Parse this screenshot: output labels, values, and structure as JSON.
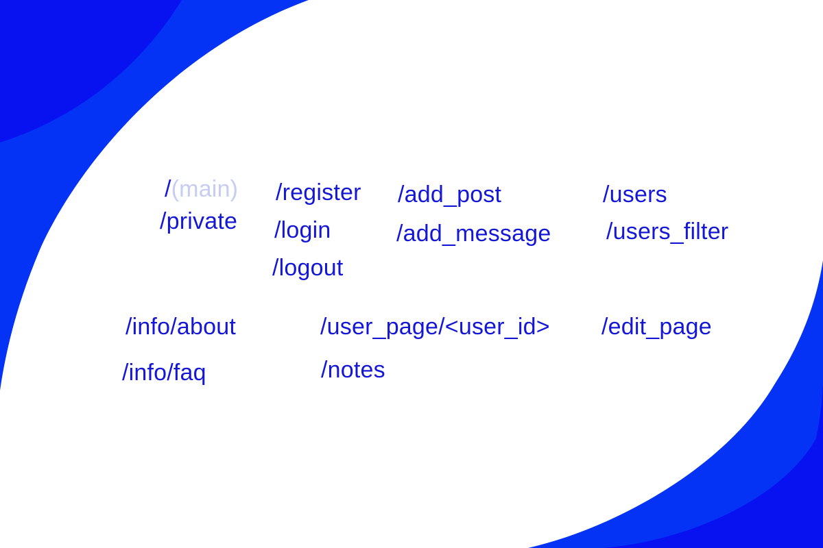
{
  "colors": {
    "route_text": "#1418d6",
    "muted_text": "#c6cdf3",
    "bg_blue_light": "#0433f5",
    "bg_blue_dark": "#0811f0",
    "background": "#ffffff"
  },
  "routes": {
    "main_slash": "/",
    "main_label": "(main)",
    "private": "/private",
    "register": "/register",
    "login": "/login",
    "logout": "/logout",
    "add_post": "/add_post",
    "add_message": "/add_message",
    "users": "/users",
    "users_filter": "/users_filter",
    "info_about": "/info/about",
    "info_faq": "/info/faq",
    "user_page": "/user_page/<user_id>",
    "notes": "/notes",
    "edit_page": "/edit_page"
  }
}
